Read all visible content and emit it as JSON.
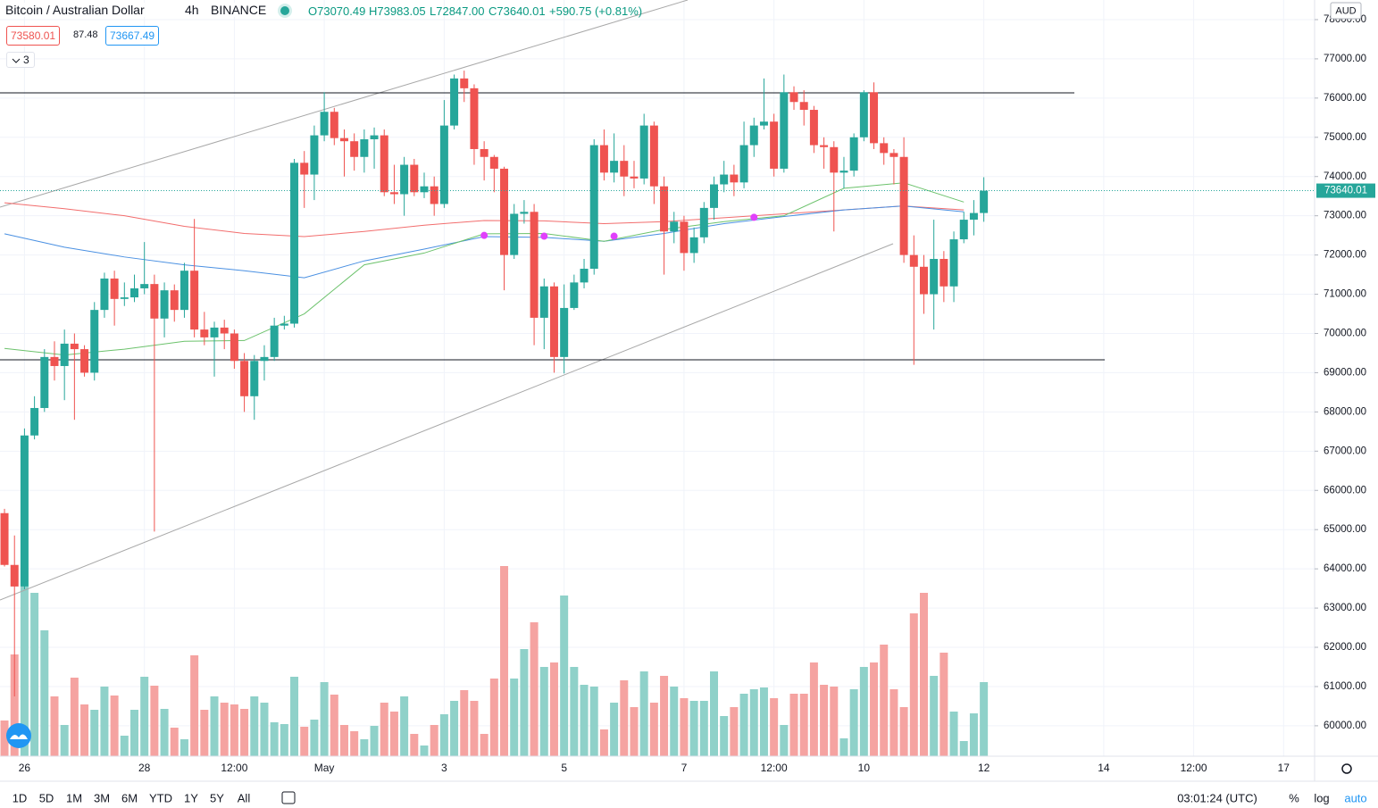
{
  "header": {
    "symbol": "Bitcoin / Australian Dollar",
    "interval": "4h",
    "exchange": "BINANCE",
    "open": "O73070.49",
    "high": "H73983.05",
    "low": "L72847.00",
    "close": "C73640.01",
    "change": "+590.75 (+0.81%)",
    "bid": "73580.01",
    "spread": "87.48",
    "ask": "73667.49",
    "indicators": "3"
  },
  "toolbar": {
    "ranges": [
      "1D",
      "5D",
      "1M",
      "3M",
      "6M",
      "YTD",
      "1Y",
      "5Y",
      "All"
    ],
    "time": "03:01:24 (UTC)",
    "percent": "%",
    "log": "log",
    "auto": "auto"
  },
  "chart_data": {
    "type": "candlestick",
    "currency": "AUD",
    "up_color": "#26a69a",
    "down_color": "#ef5350",
    "up_volume_color": "#8fd1c9",
    "down_volume_color": "#f5a3a1",
    "open": [
      65420,
      64100,
      63550,
      67400,
      68100,
      69400,
      69170,
      69740,
      69600,
      69000,
      70600,
      71400,
      70880,
      70920,
      71150,
      71260,
      70380,
      71100,
      70600,
      71600,
      70100,
      69900,
      70150,
      70000,
      69300,
      68400,
      69300,
      69400,
      70200,
      70250,
      74350,
      74050,
      75050,
      75650,
      74980,
      74900,
      74500,
      74950,
      75050,
      73600,
      73550,
      74300,
      73600,
      73750,
      73300,
      75300,
      76500,
      76250,
      74700,
      74500,
      74200,
      72000,
      73050,
      73100,
      70400,
      71200,
      69400,
      70650,
      71300,
      71650,
      74800,
      74100,
      74400,
      74000,
      73950,
      75300,
      73750,
      72600,
      72850,
      72050,
      72450,
      73200,
      73800,
      74050,
      73850,
      74800,
      75300,
      75400,
      74200,
      76150,
      75900,
      75700,
      74800,
      74750,
      74100,
      74150,
      75000,
      76150,
      74850,
      74600,
      74500,
      72000,
      71700,
      71000,
      71900,
      71200,
      72400,
      72900,
      73070.49
    ],
    "high": [
      65530,
      64850,
      67580,
      68400,
      69600,
      69800,
      70100,
      70000,
      69700,
      70800,
      71550,
      71600,
      71300,
      71500,
      72330,
      71500,
      71300,
      71250,
      71800,
      72920,
      70550,
      70300,
      70350,
      70100,
      69500,
      69450,
      69700,
      70400,
      70450,
      74450,
      74650,
      75300,
      76150,
      75750,
      75200,
      75100,
      75200,
      75250,
      75200,
      74300,
      74500,
      74450,
      74100,
      74000,
      75950,
      76600,
      76700,
      76350,
      74900,
      74550,
      74250,
      73300,
      73400,
      73300,
      71400,
      71300,
      71250,
      71500,
      71900,
      74950,
      75200,
      75100,
      74800,
      74400,
      75600,
      75400,
      74000,
      73100,
      73000,
      72700,
      73350,
      74000,
      74400,
      74300,
      75400,
      75500,
      76500,
      75600,
      76600,
      76300,
      76200,
      75800,
      75000,
      74900,
      74500,
      75100,
      76200,
      76400,
      75000,
      74700,
      75000,
      72500,
      72000,
      72900,
      72100,
      72600,
      73100,
      73400,
      73983.05
    ],
    "low": [
      64060,
      60750,
      63480,
      67300,
      68000,
      68800,
      68300,
      67800,
      68900,
      68800,
      70400,
      70200,
      70700,
      70800,
      71000,
      64950,
      69900,
      70300,
      70400,
      69900,
      69700,
      68900,
      69600,
      69100,
      68000,
      67800,
      68800,
      69300,
      70100,
      70150,
      73200,
      73400,
      74900,
      74800,
      74000,
      74150,
      74100,
      74200,
      73500,
      73300,
      73000,
      73500,
      73450,
      73000,
      73200,
      75200,
      75900,
      74300,
      73900,
      73600,
      71100,
      71900,
      72800,
      69700,
      69600,
      69000,
      68980,
      70600,
      71150,
      71500,
      73900,
      73850,
      73500,
      73700,
      73800,
      73300,
      71500,
      72300,
      71600,
      71800,
      72300,
      72900,
      73600,
      73500,
      73700,
      74500,
      75200,
      74000,
      74100,
      75700,
      75300,
      74600,
      74200,
      72600,
      73700,
      74000,
      74900,
      74700,
      74300,
      73800,
      71800,
      69200,
      70500,
      70100,
      70800,
      70800,
      72300,
      72500,
      72847.0
    ],
    "close": [
      64100,
      63550,
      67400,
      68100,
      69400,
      69170,
      69740,
      69600,
      69000,
      70600,
      71400,
      70880,
      70920,
      71150,
      71260,
      70380,
      71100,
      70600,
      71600,
      70100,
      69900,
      70150,
      70000,
      69300,
      68400,
      69300,
      69400,
      70200,
      70250,
      74350,
      74050,
      75050,
      75650,
      74980,
      74900,
      74500,
      74950,
      75050,
      73600,
      73550,
      74300,
      73600,
      73750,
      73300,
      75300,
      76500,
      76250,
      74700,
      74500,
      74200,
      72000,
      73050,
      73100,
      70400,
      71200,
      69400,
      70650,
      71300,
      71650,
      74800,
      74100,
      74400,
      74000,
      73950,
      75300,
      73750,
      72600,
      72850,
      72050,
      72450,
      73200,
      73800,
      74050,
      73850,
      74800,
      75300,
      75400,
      74200,
      76150,
      75900,
      75700,
      74800,
      74750,
      74100,
      74150,
      75000,
      76150,
      74850,
      74600,
      74500,
      72000,
      71700,
      71000,
      71900,
      71200,
      72400,
      72900,
      73070.49,
      73640.01
    ],
    "volume": [
      40,
      114,
      190,
      183,
      141,
      67,
      35,
      88,
      58,
      52,
      78,
      68,
      23,
      52,
      89,
      79,
      53,
      32,
      19,
      113,
      52,
      67,
      60,
      58,
      53,
      67,
      60,
      38,
      36,
      89,
      33,
      41,
      83,
      69,
      35,
      28,
      19,
      34,
      60,
      50,
      67,
      25,
      12,
      35,
      47,
      62,
      74,
      62,
      25,
      87,
      213,
      87,
      120,
      150,
      100,
      105,
      180,
      100,
      80,
      78,
      30,
      60,
      85,
      55,
      95,
      60,
      90,
      78,
      65,
      62,
      62,
      95,
      45,
      55,
      70,
      75,
      77,
      65,
      35,
      70,
      70,
      105,
      80,
      78,
      20,
      75,
      100,
      105,
      125,
      75,
      55,
      160,
      183,
      90,
      116,
      50,
      17,
      48,
      83
    ],
    "ma_index": [
      0,
      6,
      12,
      18,
      24,
      30,
      36,
      42,
      48,
      54,
      60,
      66,
      72,
      78,
      84,
      90,
      96
    ],
    "moving_averages": [
      {
        "color": "#f26d6d",
        "values": [
          73330,
          73180,
          73000,
          72730,
          72550,
          72470,
          72600,
          72760,
          72880,
          72870,
          72800,
          72850,
          72950,
          73050,
          73150,
          73250,
          73150
        ]
      },
      {
        "color": "#4a90e2",
        "values": [
          72540,
          72200,
          71950,
          71750,
          71600,
          71420,
          71850,
          72150,
          72470,
          72450,
          72350,
          72550,
          72800,
          72980,
          73150,
          73250,
          73100
        ]
      },
      {
        "color": "#6cc26c",
        "values": [
          69620,
          69450,
          69600,
          69800,
          69820,
          70500,
          71750,
          72050,
          72540,
          72550,
          72350,
          72650,
          72850,
          73000,
          73700,
          73840,
          73350
        ]
      }
    ],
    "markers": {
      "color": "#e040fb",
      "index": [
        48,
        54,
        61,
        75
      ],
      "values": [
        72500,
        72480,
        72480,
        72960
      ]
    },
    "levels": [
      76134,
      69329
    ],
    "last_price_label": "73640.01",
    "ylim": [
      59224,
      78500
    ],
    "yticks": [
      {
        "value": 60000,
        "label": "60000.00"
      },
      {
        "value": 61000,
        "label": "61000.00"
      },
      {
        "value": 62000,
        "label": "62000.00"
      },
      {
        "value": 63000,
        "label": "63000.00"
      },
      {
        "value": 64000,
        "label": "64000.00"
      },
      {
        "value": 65000,
        "label": "65000.00"
      },
      {
        "value": 66000,
        "label": "66000.00"
      },
      {
        "value": 67000,
        "label": "67000.00"
      },
      {
        "value": 68000,
        "label": "68000.00"
      },
      {
        "value": 69000,
        "label": "69000.00"
      },
      {
        "value": 70000,
        "label": "70000.00"
      },
      {
        "value": 71000,
        "label": "71000.00"
      },
      {
        "value": 72000,
        "label": "72000.00"
      },
      {
        "value": 73000,
        "label": "73000.00"
      },
      {
        "value": 74000,
        "label": "74000.00"
      },
      {
        "value": 75000,
        "label": "75000.00"
      },
      {
        "value": 76000,
        "label": "76000.00"
      },
      {
        "value": 77000,
        "label": "77000.00"
      },
      {
        "value": 78000,
        "label": "78000.00"
      }
    ],
    "xlim": [
      -0.45,
      131.1
    ],
    "xticks": [
      {
        "value": 2,
        "label": "26"
      },
      {
        "value": 14,
        "label": "28"
      },
      {
        "value": 23,
        "label": "12:00"
      },
      {
        "value": 32,
        "label": "May"
      },
      {
        "value": 44,
        "label": "3"
      },
      {
        "value": 56,
        "label": "5"
      },
      {
        "value": 68,
        "label": "7"
      },
      {
        "value": 77,
        "label": "12:00"
      },
      {
        "value": 86,
        "label": "10"
      },
      {
        "value": 98,
        "label": "12"
      },
      {
        "value": 110,
        "label": "14"
      },
      {
        "value": 119,
        "label": "12:00"
      },
      {
        "value": 128,
        "label": "17"
      }
    ],
    "grid": true
  }
}
